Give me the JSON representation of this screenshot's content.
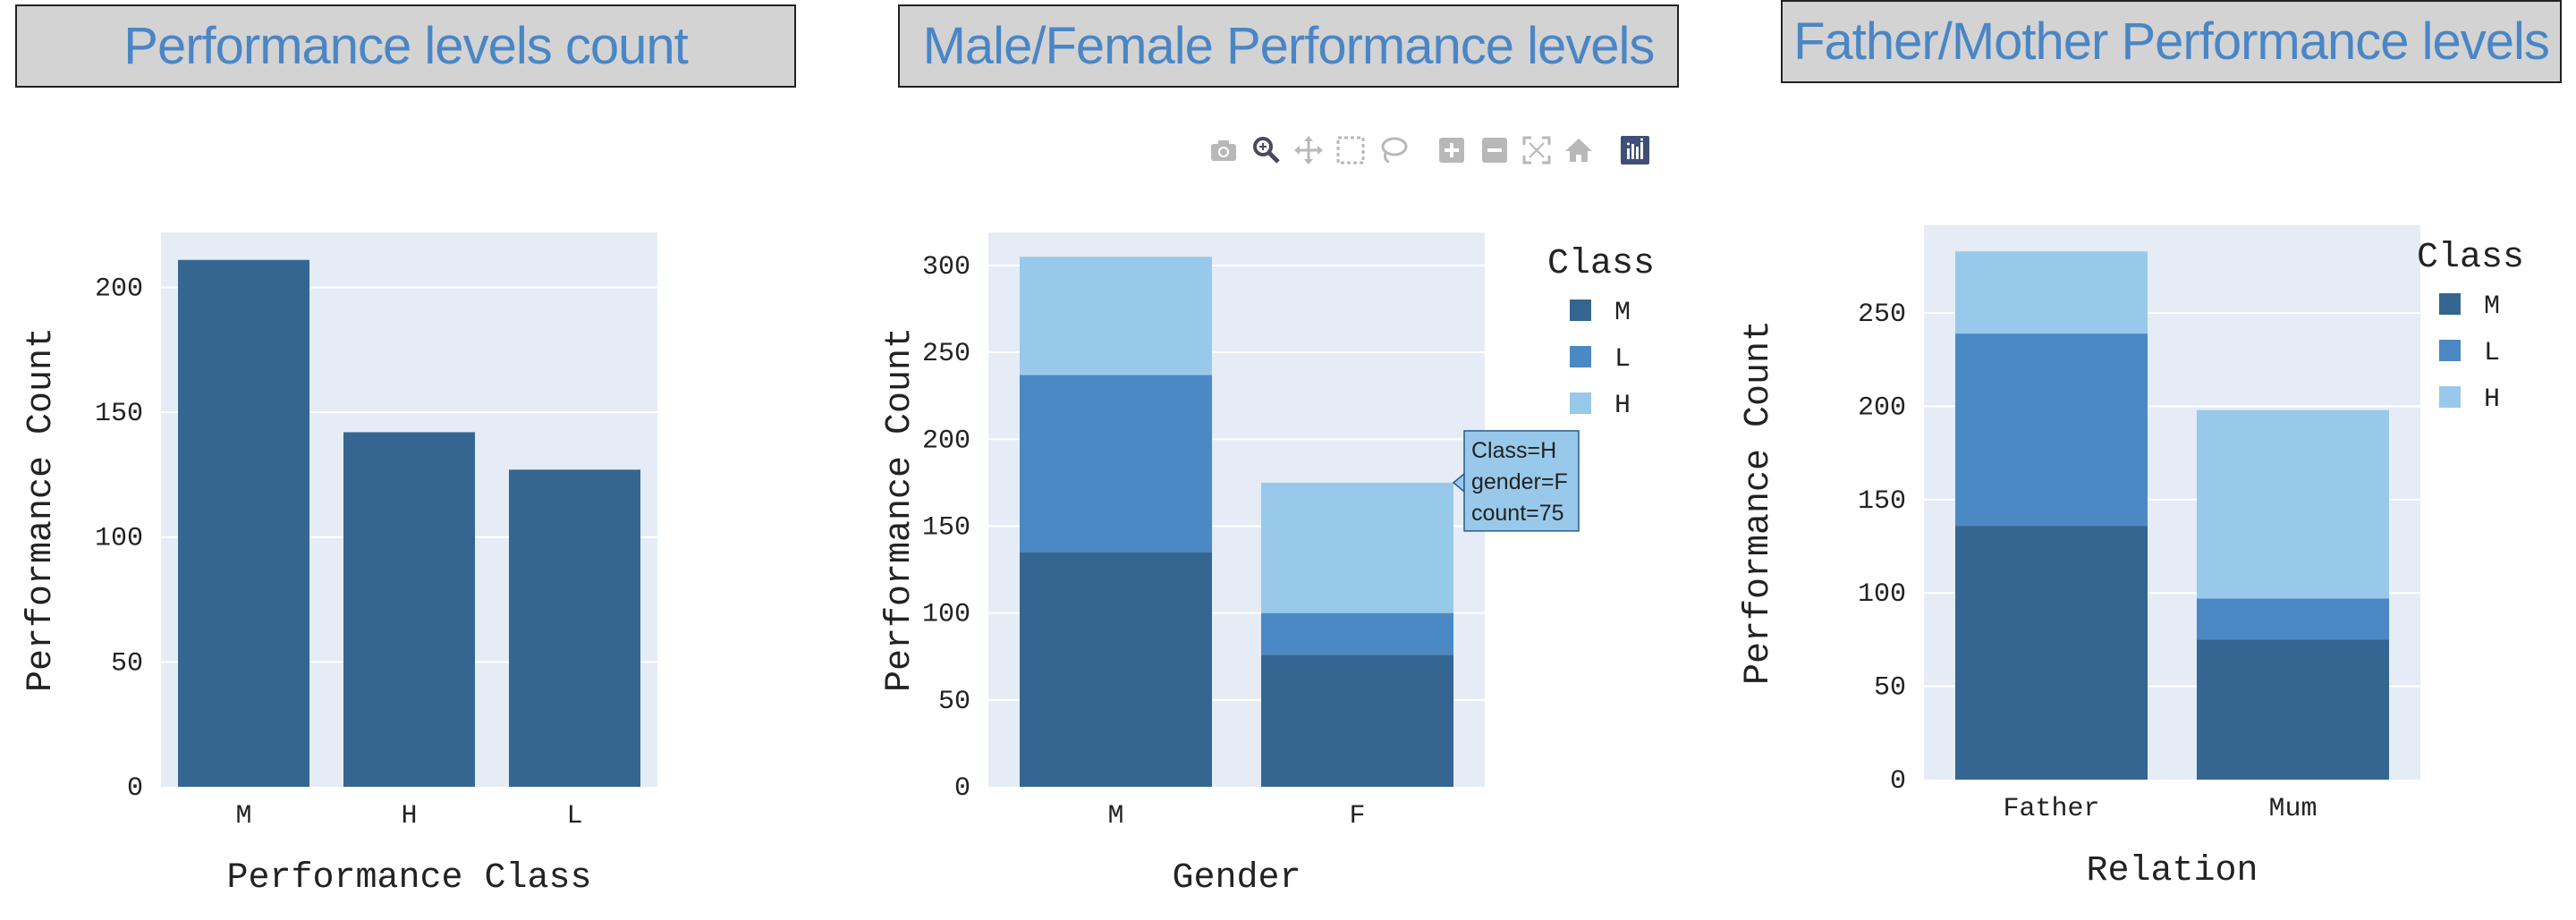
{
  "charts": [
    {
      "title": "Performance levels count",
      "xlabel": "Performance Class",
      "ylabel": "Performance Count",
      "legend": null
    },
    {
      "title": "Male/Female Performance levels",
      "xlabel": "Gender",
      "ylabel": "Performance Count",
      "legend": {
        "title": "Class",
        "items": [
          "M",
          "L",
          "H"
        ]
      },
      "tooltip": {
        "lines": [
          "Class=H",
          "gender=F",
          "count=75"
        ]
      }
    },
    {
      "title": "Father/Mother Performance levels",
      "xlabel": "Relation",
      "ylabel": "Performance Count",
      "legend": {
        "title": "Class",
        "items": [
          "M",
          "L",
          "H"
        ]
      }
    }
  ],
  "toolbar": {
    "icons": [
      "camera-icon",
      "zoom-icon",
      "pan-icon",
      "box-select-icon",
      "lasso-select-icon",
      "zoom-in-icon",
      "zoom-out-icon",
      "autoscale-icon",
      "reset-axes-icon",
      "plotly-logo-icon"
    ],
    "active": "zoom-icon"
  },
  "colors": {
    "M": "#346691",
    "L": "#4a89c4",
    "H": "#98c9ea",
    "plot_bg": "#e5ecf6",
    "title_color": "#4a86c5"
  },
  "chart_data": [
    {
      "type": "bar",
      "title": "Performance levels count",
      "xlabel": "Performance Class",
      "ylabel": "Performance Count",
      "categories": [
        "M",
        "H",
        "L"
      ],
      "values": [
        211,
        142,
        127
      ],
      "ylim": [
        0,
        222
      ],
      "yticks": [
        0,
        50,
        100,
        150,
        200
      ],
      "grid": true
    },
    {
      "type": "bar",
      "stacked": true,
      "title": "Male/Female Performance levels",
      "xlabel": "Gender",
      "ylabel": "Performance Count",
      "categories": [
        "M",
        "F"
      ],
      "series": [
        {
          "name": "M",
          "values": [
            135,
            76
          ]
        },
        {
          "name": "L",
          "values": [
            102,
            24
          ]
        },
        {
          "name": "H",
          "values": [
            68,
            75
          ]
        }
      ],
      "ylim": [
        0,
        319
      ],
      "yticks": [
        0,
        50,
        100,
        150,
        200,
        250,
        300
      ],
      "legend_position": "top-right",
      "grid": true
    },
    {
      "type": "bar",
      "stacked": true,
      "title": "Father/Mother Performance levels",
      "xlabel": "Relation",
      "ylabel": "Performance Count",
      "categories": [
        "Father",
        "Mum"
      ],
      "series": [
        {
          "name": "M",
          "values": [
            136,
            75
          ]
        },
        {
          "name": "L",
          "values": [
            103,
            22
          ]
        },
        {
          "name": "H",
          "values": [
            44,
            101
          ]
        }
      ],
      "ylim": [
        0,
        297
      ],
      "yticks": [
        0,
        50,
        100,
        150,
        200,
        250
      ],
      "legend_position": "top-right",
      "grid": true
    }
  ]
}
